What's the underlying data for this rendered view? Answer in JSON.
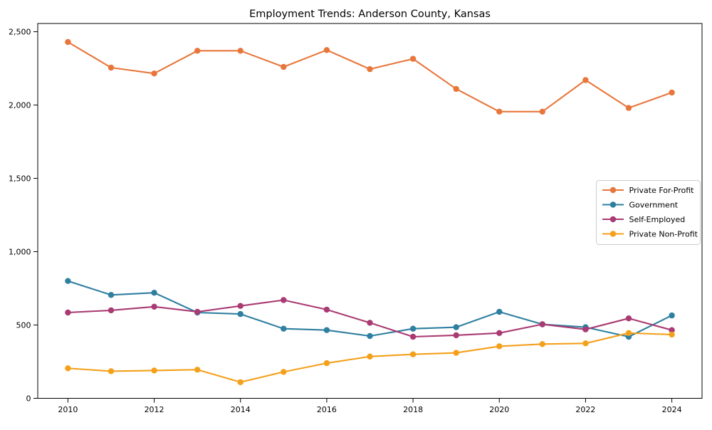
{
  "chart_data": {
    "type": "line",
    "title": "Employment Trends: Anderson County, Kansas",
    "xlabel": "",
    "ylabel": "",
    "x": [
      2010,
      2011,
      2012,
      2013,
      2014,
      2015,
      2016,
      2017,
      2018,
      2019,
      2020,
      2021,
      2022,
      2023,
      2024
    ],
    "series": [
      {
        "name": "Private For-Profit",
        "color": "#E8763B",
        "values": [
          2430,
          2255,
          2215,
          2370,
          2370,
          2260,
          2375,
          2245,
          2315,
          2110,
          1955,
          1955,
          2170,
          1980,
          2085
        ]
      },
      {
        "name": "Government",
        "color": "#2F7FA0",
        "values": [
          800,
          705,
          720,
          585,
          575,
          475,
          465,
          425,
          475,
          485,
          590,
          505,
          485,
          420,
          565
        ]
      },
      {
        "name": "Self-Employed",
        "color": "#A93A72",
        "values": [
          585,
          600,
          625,
          590,
          630,
          670,
          605,
          515,
          420,
          430,
          445,
          505,
          470,
          545,
          465
        ]
      },
      {
        "name": "Private Non-Profit",
        "color": "#F4A01B",
        "values": [
          205,
          185,
          190,
          195,
          110,
          180,
          240,
          285,
          300,
          310,
          355,
          370,
          375,
          445,
          435
        ]
      }
    ],
    "xticks": [
      2010,
      2012,
      2014,
      2016,
      2018,
      2020,
      2022,
      2024
    ],
    "xtick_labels": [
      "2010",
      "2012",
      "2014",
      "2016",
      "2018",
      "2020",
      "2022",
      "2024"
    ],
    "yticks": [
      0,
      500,
      1000,
      1500,
      2000,
      2500
    ],
    "ytick_labels": [
      "0",
      "500",
      "1,000",
      "1,500",
      "2,000",
      "2,500"
    ],
    "xlim": [
      2009.3,
      2024.7
    ],
    "ylim": [
      0,
      2556
    ],
    "grid": false,
    "legend_position": "center-right",
    "marker": "circle"
  }
}
